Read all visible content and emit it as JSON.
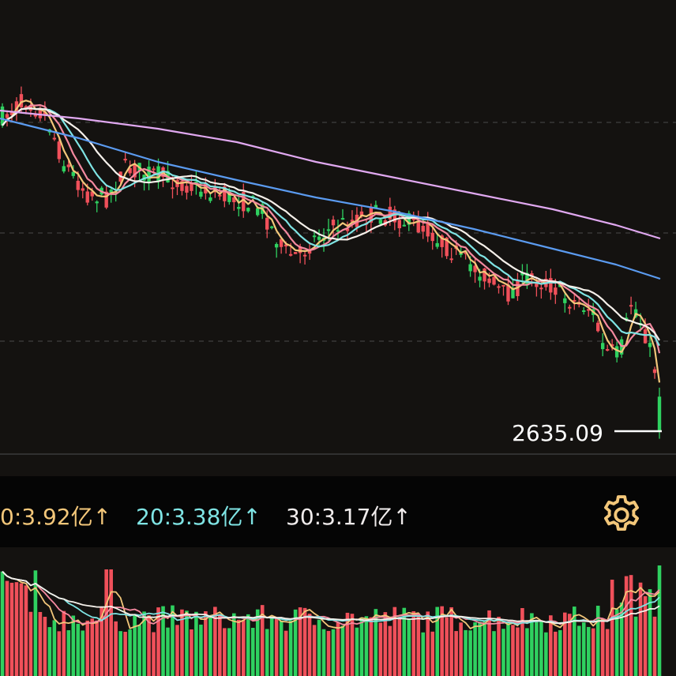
{
  "price_marker": {
    "value": "2635.09"
  },
  "volume_ma": {
    "ma10": {
      "text": "0:3.92亿↑",
      "color": "#f3c77a"
    },
    "ma20": {
      "text": "20:3.38亿↑",
      "color": "#7fe4e4"
    },
    "ma30": {
      "text": "30:3.17亿↑",
      "color": "#f0ecec"
    }
  },
  "settings_icon": "gear-icon",
  "colors": {
    "up": "#f0505a",
    "down": "#2fd160",
    "background": "#141210",
    "ma5": "#f3c77a",
    "ma10": "#f58aa0",
    "ma20": "#7fe4e4",
    "ma30": "#f5f0ea",
    "ma60": "#5b9bf0",
    "ma120": "#e0a8f0"
  }
}
